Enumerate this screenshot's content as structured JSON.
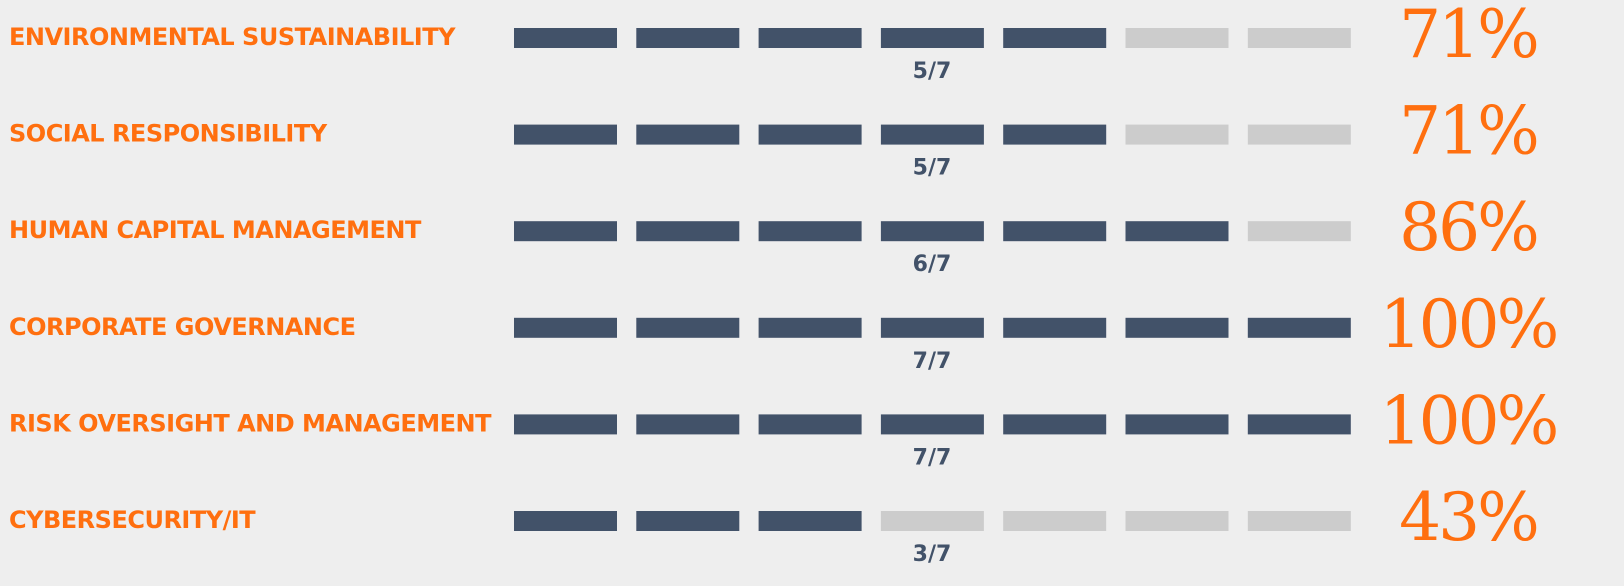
{
  "chart_data": {
    "type": "segmented-bar",
    "categories": [
      "ENVIRONMENTAL SUSTAINABILITY",
      "SOCIAL RESPONSIBILITY",
      "HUMAN CAPITAL MANAGEMENT",
      "CORPORATE GOVERNANCE",
      "RISK OVERSIGHT AND MANAGEMENT",
      "CYBERSECURITY/IT"
    ],
    "values": [
      5,
      5,
      6,
      7,
      7,
      3
    ],
    "value_labels": [
      "5/7",
      "5/7",
      "6/7",
      "7/7",
      "7/7",
      "3/7"
    ],
    "segments": 7,
    "percents": [
      71,
      71,
      86,
      100,
      100,
      43
    ],
    "percent_labels": [
      "71%",
      "71%",
      "86%",
      "100%",
      "100%",
      "43%"
    ],
    "color": "#425269",
    "empty_color": "#cccccc",
    "label_color": "#ff6f0f"
  }
}
